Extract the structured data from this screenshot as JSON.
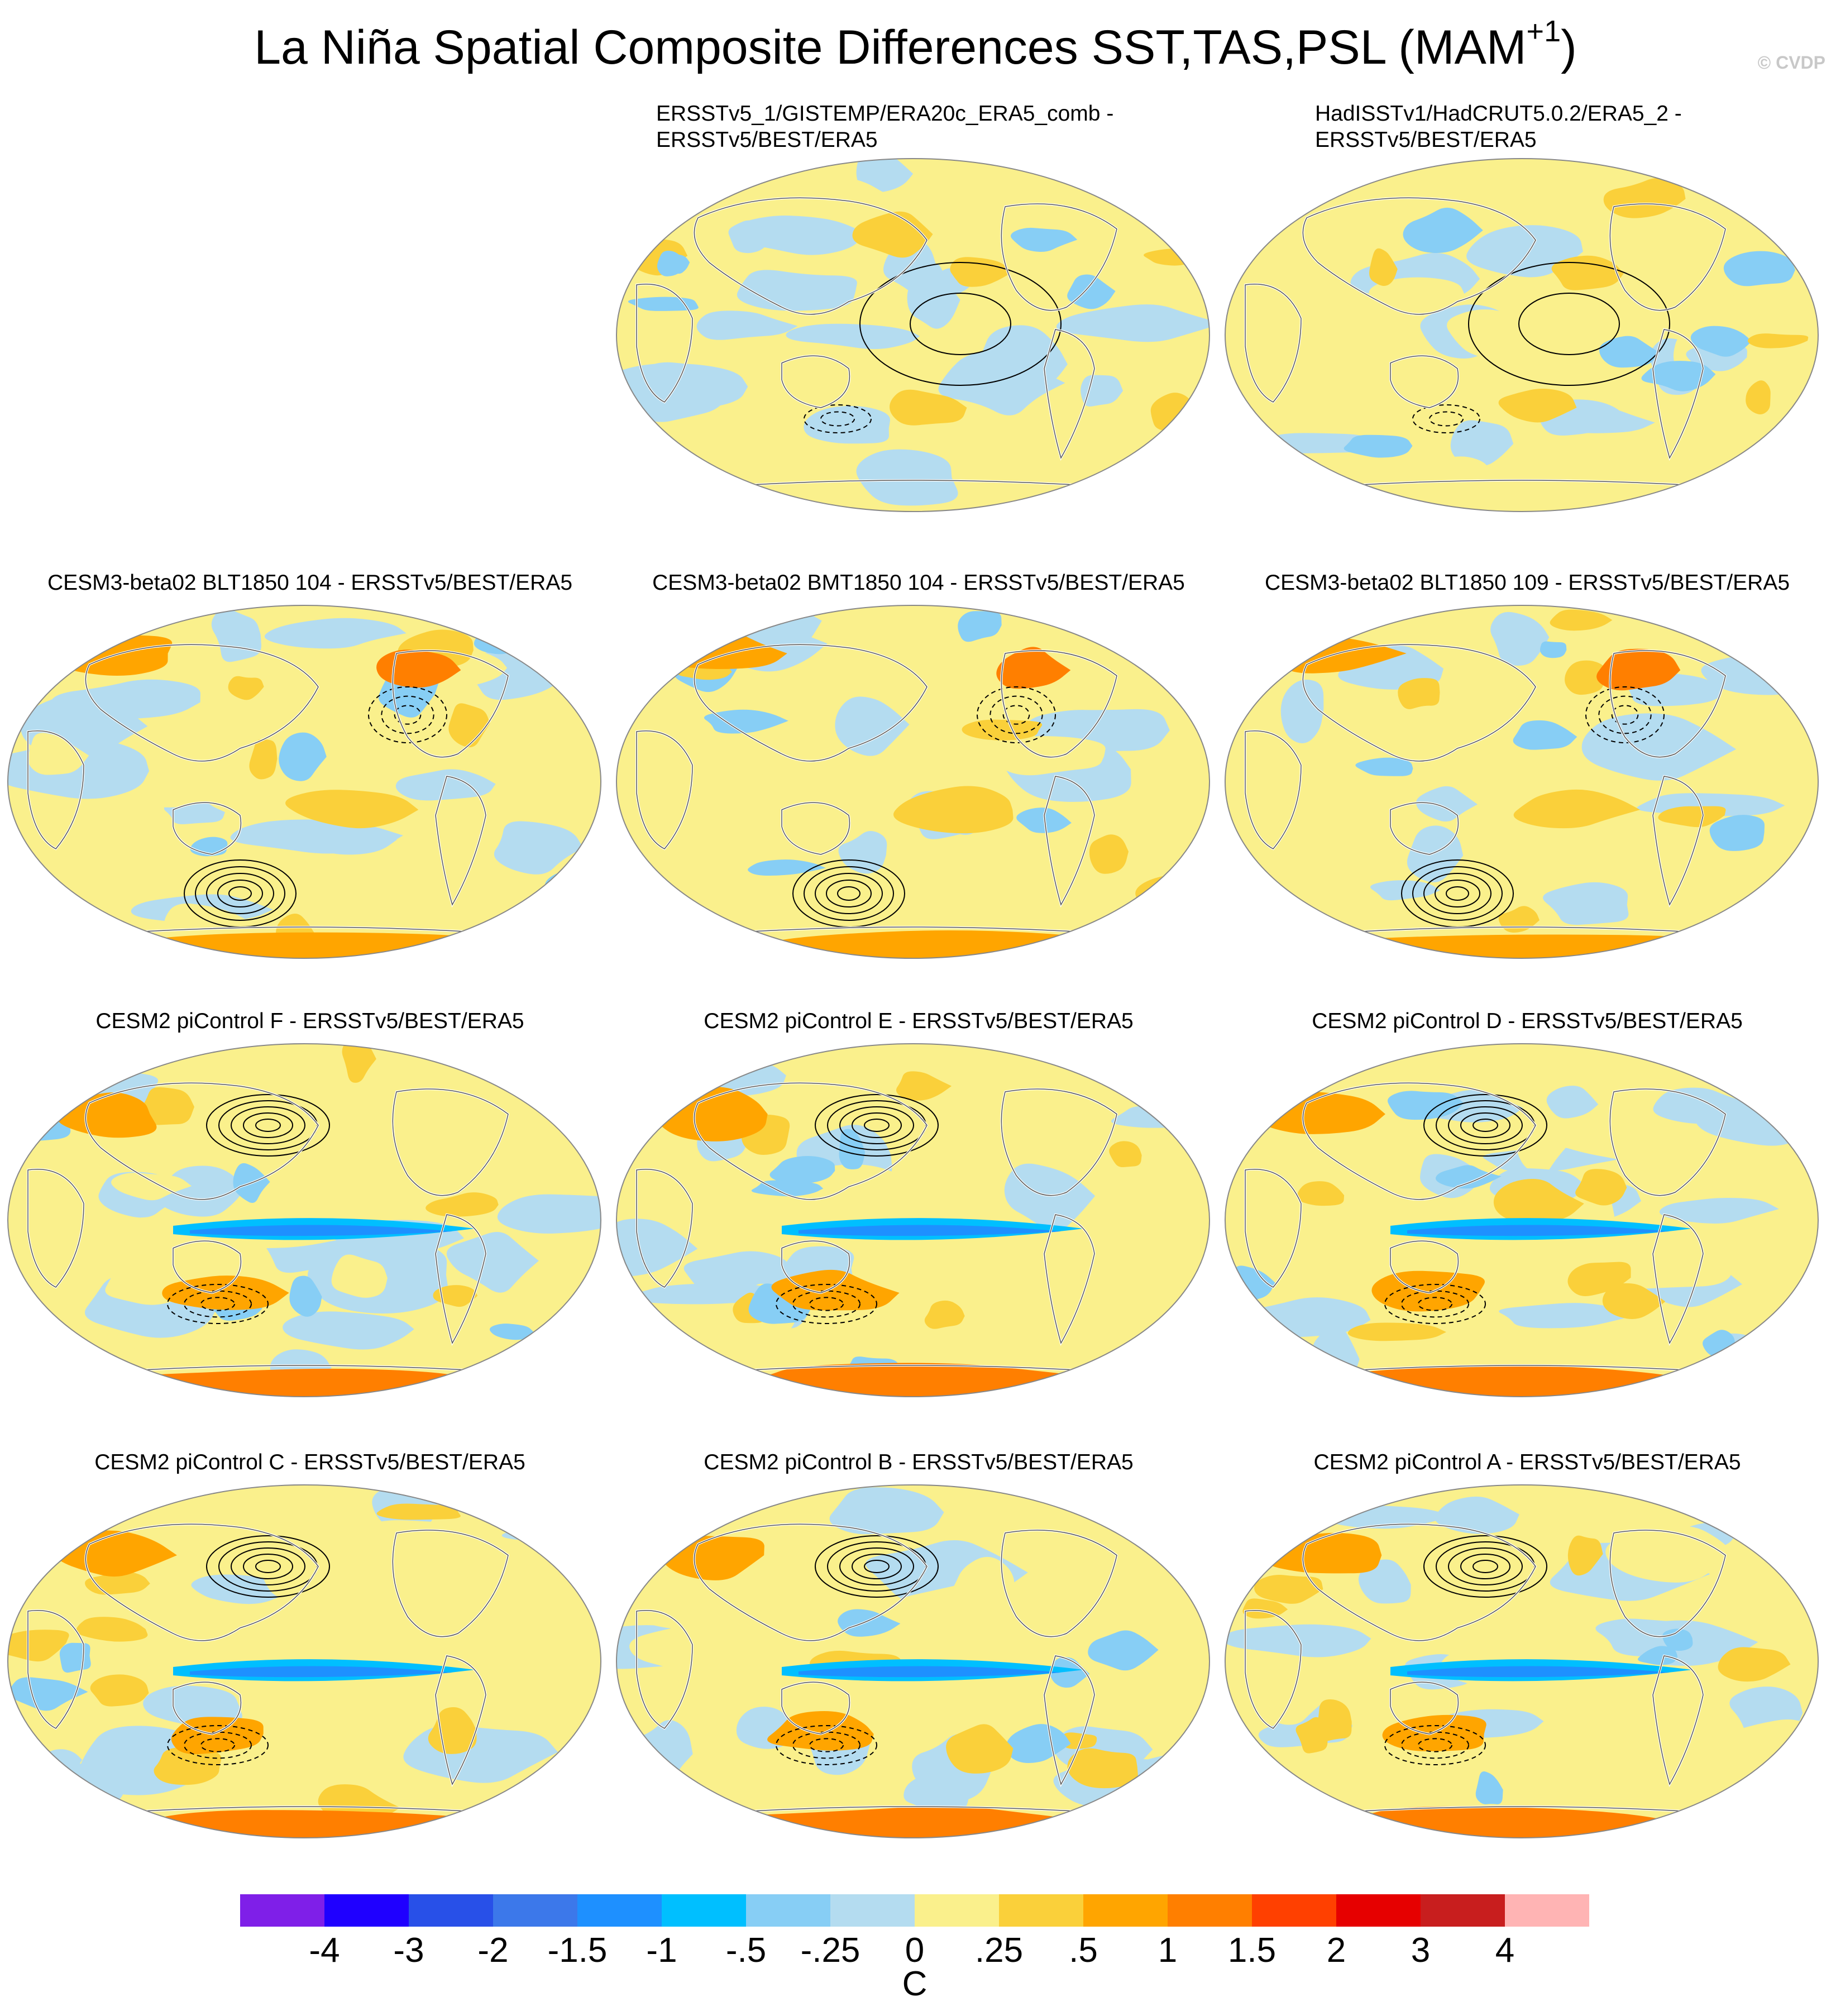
{
  "header": {
    "title": "La Niña Spatial Composite Differences SST,TAS,PSL (MAM",
    "title_superscript": "+1",
    "title_close": ")",
    "credit": "© CVDP"
  },
  "panels": [
    {
      "id": "p1",
      "label_lines": [
        "ERSSTv5_1/GISTEMP/ERA20c_ERA5_comb -",
        "ERSSTv5/BEST/ERA5"
      ],
      "pattern": "obs-a"
    },
    {
      "id": "p2",
      "label_lines": [
        "HadISSTv1/HadCRUT5.0.2/ERA5_2 -",
        "ERSSTv5/BEST/ERA5"
      ],
      "pattern": "obs-b"
    },
    {
      "id": "p3",
      "label_lines": [
        "CESM3-beta02 BLT1850 104 - ERSSTv5/BEST/ERA5"
      ],
      "pattern": "beta"
    },
    {
      "id": "p4",
      "label_lines": [
        "CESM3-beta02 BMT1850 104 - ERSSTv5/BEST/ERA5"
      ],
      "pattern": "beta"
    },
    {
      "id": "p5",
      "label_lines": [
        "CESM3-beta02 BLT1850 109 - ERSSTv5/BEST/ERA5"
      ],
      "pattern": "beta"
    },
    {
      "id": "p6",
      "label_lines": [
        "CESM2 piControl F - ERSSTv5/BEST/ERA5"
      ],
      "pattern": "cesm2"
    },
    {
      "id": "p7",
      "label_lines": [
        "CESM2 piControl E - ERSSTv5/BEST/ERA5"
      ],
      "pattern": "cesm2"
    },
    {
      "id": "p8",
      "label_lines": [
        "CESM2 piControl D - ERSSTv5/BEST/ERA5"
      ],
      "pattern": "cesm2"
    },
    {
      "id": "p9",
      "label_lines": [
        "CESM2 piControl C - ERSSTv5/BEST/ERA5"
      ],
      "pattern": "cesm2"
    },
    {
      "id": "p10",
      "label_lines": [
        "CESM2 piControl B - ERSSTv5/BEST/ERA5"
      ],
      "pattern": "cesm2"
    },
    {
      "id": "p11",
      "label_lines": [
        "CESM2 piControl A - ERSSTv5/BEST/ERA5"
      ],
      "pattern": "cesm2"
    }
  ],
  "colorbar": {
    "units": "C",
    "labels": [
      "-4",
      "-3",
      "-2",
      "-1.5",
      "-1",
      "-.5",
      "-.25",
      "0",
      ".25",
      ".5",
      "1",
      "1.5",
      "2",
      "3",
      "4"
    ],
    "colors": [
      "#7f1fe8",
      "#1f00ff",
      "#2850e8",
      "#3c78ea",
      "#1e90ff",
      "#00bfff",
      "#87cef5",
      "#b4dcf0",
      "#faf08c",
      "#fad03a",
      "#ffa500",
      "#ff7f00",
      "#ff4000",
      "#e60000",
      "#c81e1e",
      "#ffb4b4"
    ]
  }
}
